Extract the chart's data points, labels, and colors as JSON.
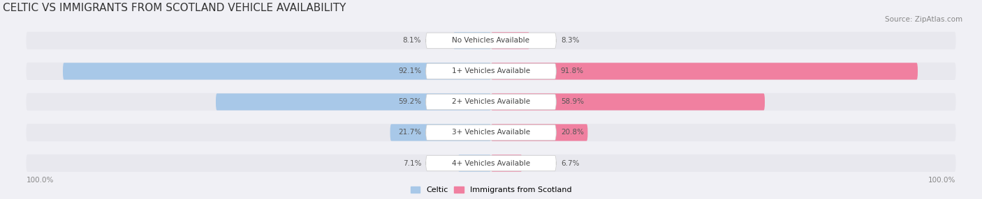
{
  "title": "CELTIC VS IMMIGRANTS FROM SCOTLAND VEHICLE AVAILABILITY",
  "source": "Source: ZipAtlas.com",
  "categories": [
    "No Vehicles Available",
    "1+ Vehicles Available",
    "2+ Vehicles Available",
    "3+ Vehicles Available",
    "4+ Vehicles Available"
  ],
  "celtic_values": [
    8.1,
    92.1,
    59.2,
    21.7,
    7.1
  ],
  "immigrant_values": [
    8.3,
    91.8,
    58.9,
    20.8,
    6.7
  ],
  "celtic_color": "#a8c8e8",
  "immigrant_color": "#f080a0",
  "bar_bg_color": "#e8e8ee",
  "background_color": "#f0f0f5",
  "bar_height": 0.55,
  "xlim": [
    0,
    100
  ],
  "figsize": [
    14.06,
    2.86
  ],
  "dpi": 100,
  "title_fontsize": 11,
  "label_fontsize": 7.5,
  "category_fontsize": 7.5,
  "legend_fontsize": 8,
  "source_fontsize": 7.5
}
